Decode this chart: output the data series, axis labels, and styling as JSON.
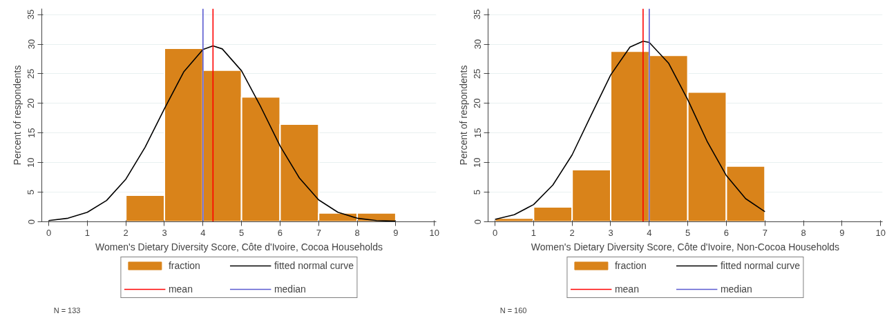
{
  "chart_data": [
    {
      "type": "histogram",
      "xlabel": "Women's Dietary Diversity Score, Côte d'Ivoire, Cocoa Households",
      "ylabel": "Percent of respondents",
      "bins": [
        2,
        3,
        4,
        5,
        6,
        7,
        8,
        9
      ],
      "series": [
        {
          "name": "fraction",
          "color": "#d9831a",
          "values": [
            4.5,
            29.3,
            25.6,
            21.1,
            16.5,
            1.5,
            1.5
          ]
        },
        {
          "name": "fitted normal curve",
          "type": "line",
          "color": "#000000",
          "x": [
            0,
            0.5,
            1,
            1.5,
            2,
            2.5,
            3,
            3.5,
            4,
            4.26,
            4.5,
            5,
            5.5,
            6,
            6.5,
            7,
            7.5,
            8,
            8.5,
            9
          ],
          "values": [
            0.2,
            0.6,
            1.6,
            3.6,
            7.2,
            12.6,
            19.1,
            25.3,
            29.1,
            29.7,
            29.2,
            25.5,
            19.4,
            12.8,
            7.4,
            3.7,
            1.6,
            0.6,
            0.2,
            0.1
          ]
        }
      ],
      "ref_lines": [
        {
          "axis": "x",
          "value": 4.26,
          "label": "mean",
          "color": "#ff0000"
        },
        {
          "axis": "x",
          "value": 4,
          "label": "median",
          "color": "#5a5ad0"
        }
      ],
      "xlim": [
        -0.18,
        10.05
      ],
      "ylim": [
        0,
        36
      ],
      "xticks": [
        0,
        1,
        2,
        3,
        4,
        5,
        6,
        7,
        8,
        9,
        10
      ],
      "yticks": [
        0,
        5,
        10,
        15,
        20,
        25,
        30,
        35
      ],
      "grid": "y",
      "legend": "bottom",
      "annotations": [
        "N = 133"
      ]
    },
    {
      "type": "histogram",
      "xlabel": "Women's Dietary Diversity Score, Côte d'Ivoire, Non-Cocoa Households",
      "ylabel": "Percent of respondents",
      "bins": [
        0,
        1,
        2,
        3,
        4,
        5,
        6,
        7
      ],
      "series": [
        {
          "name": "fraction",
          "color": "#d9831a",
          "values": [
            0.6,
            2.5,
            8.8,
            28.8,
            28.1,
            21.9,
            9.4
          ]
        },
        {
          "name": "fitted normal curve",
          "type": "line",
          "color": "#000000",
          "x": [
            0,
            0.5,
            1,
            1.5,
            2,
            2.5,
            3,
            3.5,
            3.84,
            4,
            4.5,
            5,
            5.5,
            6,
            6.5,
            7
          ],
          "values": [
            0.4,
            1.2,
            2.9,
            6.2,
            11.3,
            18.1,
            24.8,
            29.5,
            30.5,
            30.3,
            26.8,
            20.6,
            13.6,
            7.8,
            3.9,
            1.7
          ]
        }
      ],
      "ref_lines": [
        {
          "axis": "x",
          "value": 3.84,
          "label": "mean",
          "color": "#ff0000"
        },
        {
          "axis": "x",
          "value": 4,
          "label": "median",
          "color": "#5a5ad0"
        }
      ],
      "xlim": [
        -0.18,
        10.05
      ],
      "ylim": [
        0,
        36
      ],
      "xticks": [
        0,
        1,
        2,
        3,
        4,
        5,
        6,
        7,
        8,
        9,
        10
      ],
      "yticks": [
        0,
        5,
        10,
        15,
        20,
        25,
        30,
        35
      ],
      "grid": "y",
      "legend": "bottom",
      "annotations": [
        "N = 160"
      ]
    }
  ]
}
